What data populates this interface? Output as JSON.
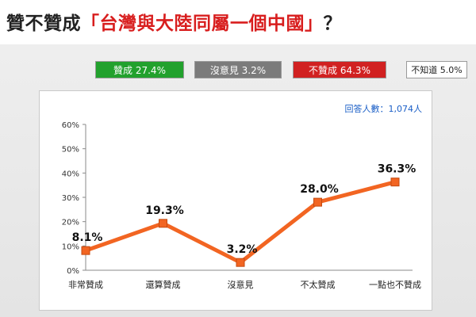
{
  "title": {
    "prefix": "贊不贊成",
    "highlight": "「台灣與大陸同屬一個中國」",
    "suffix": "？"
  },
  "summary": {
    "agree": "贊成 27.4%",
    "no_opinion": "沒意見 3.2%",
    "disagree": "不贊成 64.3%",
    "unknown": "不知道 5.0%"
  },
  "respondents": "回答人數：1,074人",
  "colors": {
    "agree": "#22a12d",
    "no_opinion": "#7b7b7b",
    "disagree": "#d12121",
    "title_highlight": "#d81e1e",
    "line": "#f26522",
    "respondents_text": "#1b5fc7"
  },
  "chart_data": {
    "type": "line",
    "categories": [
      "非常贊成",
      "還算贊成",
      "沒意見",
      "不太贊成",
      "一點也不贊成"
    ],
    "values": [
      8.1,
      19.3,
      3.2,
      28.0,
      36.3
    ],
    "value_labels": [
      "8.1%",
      "19.3%",
      "3.2%",
      "28.0%",
      "36.3%"
    ],
    "ylim": [
      0,
      60
    ],
    "yticks": [
      "0%",
      "10%",
      "20%",
      "30%",
      "40%",
      "50%",
      "60%"
    ],
    "grid": false,
    "xlabel": "",
    "ylabel": ""
  }
}
